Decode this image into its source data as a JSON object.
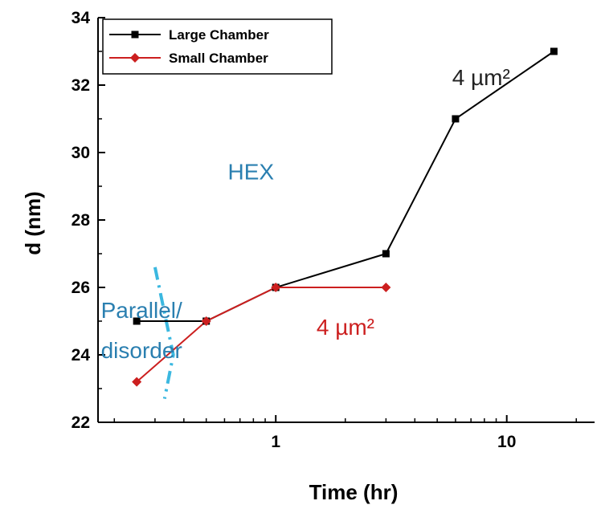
{
  "chart_data": {
    "type": "line",
    "title": "",
    "xlabel": "Time (hr)",
    "ylabel": "d (nm)",
    "xscale": "log",
    "xlim": [
      0.17,
      24
    ],
    "ylim": [
      22,
      34
    ],
    "x_ticks": [
      {
        "value": 1,
        "label": "1"
      },
      {
        "value": 10,
        "label": "10"
      }
    ],
    "y_ticks": [
      {
        "value": 22,
        "label": "22"
      },
      {
        "value": 24,
        "label": "24"
      },
      {
        "value": 26,
        "label": "26"
      },
      {
        "value": 28,
        "label": "28"
      },
      {
        "value": 30,
        "label": "30"
      },
      {
        "value": 32,
        "label": "32"
      },
      {
        "value": 34,
        "label": "34"
      }
    ],
    "grid": false,
    "legend_position": "top-left",
    "series": [
      {
        "name": "Large Chamber",
        "color": "#000000",
        "marker": "square",
        "points": [
          {
            "x": 0.25,
            "y": 25
          },
          {
            "x": 0.5,
            "y": 25
          },
          {
            "x": 1,
            "y": 26
          },
          {
            "x": 3,
            "y": 27
          },
          {
            "x": 6,
            "y": 31
          },
          {
            "x": 16,
            "y": 33
          }
        ]
      },
      {
        "name": "Small Chamber",
        "color": "#cc1f1f",
        "marker": "diamond",
        "points": [
          {
            "x": 0.25,
            "y": 23.2
          },
          {
            "x": 0.5,
            "y": 25
          },
          {
            "x": 1,
            "y": 26
          },
          {
            "x": 3,
            "y": 26
          }
        ]
      }
    ],
    "annotations": [
      {
        "text": "4 µm²",
        "color": "#222222",
        "x": 5.8,
        "y": 32
      },
      {
        "text": "HEX",
        "color": "#2a7fb0",
        "x": 0.62,
        "y": 29.2
      },
      {
        "text": "4 µm²",
        "color": "#cc1f1f",
        "x": 1.5,
        "y": 24.6
      },
      {
        "text": "Parallel/",
        "color": "#2a7fb0",
        "x": 0.175,
        "y": 25.1
      },
      {
        "text": "disorder",
        "color": "#2a7fb0",
        "x": 0.175,
        "y": 23.9
      }
    ],
    "boundary_line": {
      "color": "#3bb8e0",
      "points": [
        {
          "x": 0.3,
          "y": 26.6
        },
        {
          "x": 0.36,
          "y": 24
        },
        {
          "x": 0.33,
          "y": 22.7
        }
      ]
    }
  }
}
